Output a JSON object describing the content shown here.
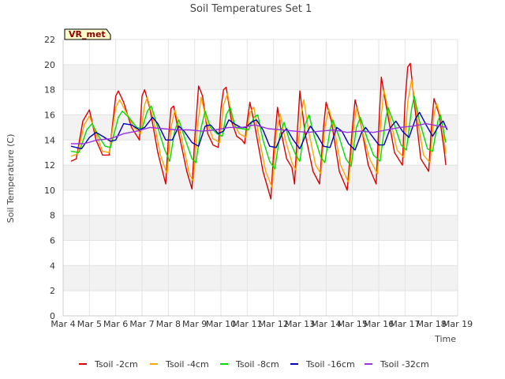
{
  "chart_data": {
    "type": "line",
    "title": "Soil Temperatures Set 1",
    "xlabel": "Time",
    "ylabel": "Soil Temperature (C)",
    "station_label": "VR_met",
    "x_tick_labels": [
      "Mar 4",
      "Mar 5",
      "Mar 6",
      "Mar 7",
      "Mar 8",
      "Mar 9",
      "Mar 10",
      "Mar 11",
      "Mar 12",
      "Mar 13",
      "Mar 14",
      "Mar 15",
      "Mar 16",
      "Mar 17",
      "Mar 18",
      "Mar 19"
    ],
    "xlim": [
      4,
      19
    ],
    "ylim": [
      0,
      22
    ],
    "y_ticks": [
      0,
      2,
      4,
      6,
      8,
      10,
      12,
      14,
      16,
      18,
      20,
      22
    ],
    "grid": true,
    "legend_position": "bottom",
    "colors": {
      "Tsoil -2cm": "#dd0000",
      "Tsoil -4cm": "#ffa500",
      "Tsoil -8cm": "#00dd00",
      "Tsoil -16cm": "#0000bb",
      "Tsoil -32cm": "#9933dd"
    },
    "series": [
      {
        "name": "Tsoil -2cm",
        "points": [
          [
            4.3,
            12.3
          ],
          [
            4.5,
            12.5
          ],
          [
            4.75,
            15.5
          ],
          [
            5.0,
            16.4
          ],
          [
            5.25,
            14.0
          ],
          [
            5.5,
            12.8
          ],
          [
            5.75,
            12.8
          ],
          [
            6.0,
            17.5
          ],
          [
            6.1,
            17.9
          ],
          [
            6.3,
            17.0
          ],
          [
            6.6,
            15.0
          ],
          [
            6.9,
            14.0
          ],
          [
            7.0,
            17.5
          ],
          [
            7.1,
            18.0
          ],
          [
            7.3,
            16.5
          ],
          [
            7.6,
            13.0
          ],
          [
            7.9,
            10.5
          ],
          [
            8.0,
            14.0
          ],
          [
            8.1,
            16.5
          ],
          [
            8.2,
            16.7
          ],
          [
            8.4,
            14.5
          ],
          [
            8.7,
            11.5
          ],
          [
            8.9,
            10.1
          ],
          [
            9.0,
            14.0
          ],
          [
            9.15,
            18.3
          ],
          [
            9.3,
            17.5
          ],
          [
            9.5,
            14.5
          ],
          [
            9.7,
            13.6
          ],
          [
            9.9,
            13.4
          ],
          [
            10.0,
            16.5
          ],
          [
            10.1,
            18.0
          ],
          [
            10.2,
            18.2
          ],
          [
            10.4,
            15.5
          ],
          [
            10.6,
            14.3
          ],
          [
            10.8,
            14.0
          ],
          [
            10.9,
            13.7
          ],
          [
            11.0,
            15.5
          ],
          [
            11.1,
            17.0
          ],
          [
            11.3,
            15.0
          ],
          [
            11.6,
            11.5
          ],
          [
            11.9,
            9.3
          ],
          [
            12.0,
            13.0
          ],
          [
            12.15,
            16.6
          ],
          [
            12.3,
            14.5
          ],
          [
            12.5,
            12.5
          ],
          [
            12.7,
            11.8
          ],
          [
            12.8,
            10.5
          ],
          [
            12.9,
            14.5
          ],
          [
            13.0,
            17.9
          ],
          [
            13.2,
            14.5
          ],
          [
            13.5,
            11.5
          ],
          [
            13.75,
            10.5
          ],
          [
            13.9,
            15.0
          ],
          [
            14.0,
            17.0
          ],
          [
            14.2,
            15.5
          ],
          [
            14.5,
            11.5
          ],
          [
            14.8,
            10.0
          ],
          [
            15.0,
            15.0
          ],
          [
            15.1,
            17.2
          ],
          [
            15.3,
            15.5
          ],
          [
            15.6,
            12.0
          ],
          [
            15.9,
            10.5
          ],
          [
            16.0,
            15.0
          ],
          [
            16.1,
            19.0
          ],
          [
            16.3,
            16.5
          ],
          [
            16.6,
            13.0
          ],
          [
            16.9,
            12.0
          ],
          [
            17.0,
            17.0
          ],
          [
            17.1,
            19.8
          ],
          [
            17.2,
            20.1
          ],
          [
            17.35,
            17.0
          ],
          [
            17.6,
            12.5
          ],
          [
            17.9,
            11.5
          ],
          [
            18.0,
            15.0
          ],
          [
            18.1,
            17.3
          ],
          [
            18.3,
            16.0
          ],
          [
            18.5,
            13.0
          ],
          [
            18.55,
            12.0
          ]
        ]
      },
      {
        "name": "Tsoil -4cm",
        "points": [
          [
            4.3,
            12.7
          ],
          [
            4.55,
            12.9
          ],
          [
            4.8,
            15.2
          ],
          [
            5.0,
            15.9
          ],
          [
            5.25,
            14.5
          ],
          [
            5.5,
            13.1
          ],
          [
            5.75,
            13.0
          ],
          [
            6.0,
            16.6
          ],
          [
            6.15,
            17.2
          ],
          [
            6.4,
            16.2
          ],
          [
            6.7,
            15.0
          ],
          [
            6.95,
            14.5
          ],
          [
            7.1,
            16.8
          ],
          [
            7.2,
            17.4
          ],
          [
            7.45,
            15.5
          ],
          [
            7.7,
            12.8
          ],
          [
            7.95,
            11.3
          ],
          [
            8.1,
            15.0
          ],
          [
            8.25,
            16.4
          ],
          [
            8.5,
            14.2
          ],
          [
            8.8,
            11.3
          ],
          [
            8.95,
            10.7
          ],
          [
            9.1,
            15.0
          ],
          [
            9.25,
            17.4
          ],
          [
            9.45,
            15.5
          ],
          [
            9.7,
            14.1
          ],
          [
            9.95,
            13.8
          ],
          [
            10.1,
            16.8
          ],
          [
            10.25,
            17.7
          ],
          [
            10.45,
            15.5
          ],
          [
            10.7,
            14.5
          ],
          [
            10.95,
            14.2
          ],
          [
            11.1,
            16.2
          ],
          [
            11.25,
            16.6
          ],
          [
            11.45,
            14.2
          ],
          [
            11.7,
            11.5
          ],
          [
            11.95,
            10.2
          ],
          [
            12.1,
            14.5
          ],
          [
            12.25,
            16.1
          ],
          [
            12.45,
            14.0
          ],
          [
            12.7,
            12.2
          ],
          [
            12.85,
            11.6
          ],
          [
            13.05,
            16.0
          ],
          [
            13.15,
            17.2
          ],
          [
            13.35,
            14.5
          ],
          [
            13.6,
            12.0
          ],
          [
            13.8,
            11.3
          ],
          [
            13.95,
            15.0
          ],
          [
            14.1,
            16.5
          ],
          [
            14.3,
            15.0
          ],
          [
            14.55,
            12.0
          ],
          [
            14.85,
            10.6
          ],
          [
            15.05,
            15.0
          ],
          [
            15.15,
            16.6
          ],
          [
            15.4,
            14.5
          ],
          [
            15.65,
            12.5
          ],
          [
            15.95,
            11.3
          ],
          [
            16.1,
            16.0
          ],
          [
            16.2,
            18.0
          ],
          [
            16.4,
            16.0
          ],
          [
            16.7,
            13.2
          ],
          [
            16.95,
            12.6
          ],
          [
            17.1,
            17.0
          ],
          [
            17.25,
            18.8
          ],
          [
            17.45,
            16.0
          ],
          [
            17.7,
            12.8
          ],
          [
            17.95,
            12.2
          ],
          [
            18.1,
            16.0
          ],
          [
            18.2,
            16.9
          ],
          [
            18.4,
            15.5
          ],
          [
            18.55,
            12.9
          ]
        ]
      },
      {
        "name": "Tsoil -8cm",
        "points": [
          [
            4.3,
            13.1
          ],
          [
            4.6,
            13.0
          ],
          [
            4.9,
            14.8
          ],
          [
            5.1,
            15.3
          ],
          [
            5.35,
            14.3
          ],
          [
            5.6,
            13.5
          ],
          [
            5.8,
            13.4
          ],
          [
            6.1,
            15.8
          ],
          [
            6.25,
            16.3
          ],
          [
            6.5,
            15.8
          ],
          [
            6.8,
            15.0
          ],
          [
            7.0,
            14.9
          ],
          [
            7.2,
            16.3
          ],
          [
            7.35,
            16.7
          ],
          [
            7.6,
            15.0
          ],
          [
            7.85,
            13.3
          ],
          [
            8.05,
            12.3
          ],
          [
            8.25,
            14.8
          ],
          [
            8.4,
            15.6
          ],
          [
            8.65,
            14.0
          ],
          [
            8.9,
            12.5
          ],
          [
            9.05,
            12.2
          ],
          [
            9.25,
            15.0
          ],
          [
            9.4,
            16.3
          ],
          [
            9.6,
            15.0
          ],
          [
            9.85,
            14.5
          ],
          [
            10.05,
            14.3
          ],
          [
            10.2,
            16.0
          ],
          [
            10.35,
            16.6
          ],
          [
            10.55,
            15.0
          ],
          [
            10.8,
            14.9
          ],
          [
            11.05,
            14.8
          ],
          [
            11.25,
            15.8
          ],
          [
            11.4,
            16.0
          ],
          [
            11.6,
            14.0
          ],
          [
            11.85,
            12.3
          ],
          [
            12.05,
            11.7
          ],
          [
            12.25,
            14.5
          ],
          [
            12.4,
            15.4
          ],
          [
            12.6,
            14.0
          ],
          [
            12.85,
            12.8
          ],
          [
            13.0,
            12.3
          ],
          [
            13.2,
            15.2
          ],
          [
            13.35,
            16.0
          ],
          [
            13.55,
            14.3
          ],
          [
            13.8,
            12.6
          ],
          [
            13.95,
            12.2
          ],
          [
            14.15,
            14.8
          ],
          [
            14.25,
            15.6
          ],
          [
            14.5,
            14.2
          ],
          [
            14.75,
            12.5
          ],
          [
            14.95,
            11.9
          ],
          [
            15.15,
            15.0
          ],
          [
            15.3,
            15.8
          ],
          [
            15.55,
            14.2
          ],
          [
            15.8,
            12.8
          ],
          [
            16.05,
            12.3
          ],
          [
            16.25,
            15.5
          ],
          [
            16.35,
            16.6
          ],
          [
            16.55,
            15.5
          ],
          [
            16.85,
            13.6
          ],
          [
            17.05,
            13.2
          ],
          [
            17.25,
            16.5
          ],
          [
            17.35,
            17.5
          ],
          [
            17.55,
            15.5
          ],
          [
            17.85,
            13.3
          ],
          [
            18.05,
            13.1
          ],
          [
            18.25,
            15.5
          ],
          [
            18.35,
            16.0
          ],
          [
            18.55,
            13.8
          ]
        ]
      },
      {
        "name": "Tsoil -16cm",
        "points": [
          [
            4.3,
            13.5
          ],
          [
            4.7,
            13.3
          ],
          [
            5.0,
            14.2
          ],
          [
            5.25,
            14.6
          ],
          [
            5.5,
            14.3
          ],
          [
            5.8,
            13.9
          ],
          [
            6.0,
            14.0
          ],
          [
            6.3,
            15.3
          ],
          [
            6.6,
            15.2
          ],
          [
            6.9,
            14.8
          ],
          [
            7.1,
            15.0
          ],
          [
            7.4,
            15.8
          ],
          [
            7.6,
            15.3
          ],
          [
            7.9,
            14.0
          ],
          [
            8.15,
            14.0
          ],
          [
            8.4,
            15.1
          ],
          [
            8.6,
            14.7
          ],
          [
            8.9,
            13.8
          ],
          [
            9.15,
            13.5
          ],
          [
            9.4,
            15.1
          ],
          [
            9.6,
            15.2
          ],
          [
            9.9,
            14.5
          ],
          [
            10.1,
            14.7
          ],
          [
            10.3,
            15.6
          ],
          [
            10.5,
            15.3
          ],
          [
            10.75,
            15.0
          ],
          [
            10.95,
            15.0
          ],
          [
            11.15,
            15.4
          ],
          [
            11.35,
            15.6
          ],
          [
            11.6,
            14.8
          ],
          [
            11.85,
            13.5
          ],
          [
            12.1,
            13.4
          ],
          [
            12.35,
            14.6
          ],
          [
            12.5,
            14.9
          ],
          [
            12.75,
            14.0
          ],
          [
            13.0,
            13.3
          ],
          [
            13.25,
            14.5
          ],
          [
            13.4,
            15.1
          ],
          [
            13.65,
            14.4
          ],
          [
            13.9,
            13.5
          ],
          [
            14.15,
            13.4
          ],
          [
            14.4,
            15.0
          ],
          [
            14.6,
            14.7
          ],
          [
            14.85,
            13.7
          ],
          [
            15.1,
            13.2
          ],
          [
            15.35,
            14.6
          ],
          [
            15.5,
            15.0
          ],
          [
            15.75,
            14.3
          ],
          [
            16.0,
            13.6
          ],
          [
            16.2,
            13.6
          ],
          [
            16.45,
            15.0
          ],
          [
            16.65,
            15.5
          ],
          [
            16.9,
            14.7
          ],
          [
            17.15,
            14.2
          ],
          [
            17.4,
            15.7
          ],
          [
            17.55,
            16.2
          ],
          [
            17.8,
            15.2
          ],
          [
            18.05,
            14.3
          ],
          [
            18.3,
            15.2
          ],
          [
            18.45,
            15.5
          ],
          [
            18.6,
            14.8
          ]
        ]
      },
      {
        "name": "Tsoil -32cm",
        "points": [
          [
            4.3,
            13.7
          ],
          [
            4.8,
            13.7
          ],
          [
            5.3,
            14.0
          ],
          [
            5.8,
            14.1
          ],
          [
            6.3,
            14.5
          ],
          [
            6.8,
            14.7
          ],
          [
            7.3,
            15.0
          ],
          [
            7.8,
            14.9
          ],
          [
            8.3,
            14.8
          ],
          [
            8.8,
            14.8
          ],
          [
            9.3,
            14.7
          ],
          [
            9.8,
            14.8
          ],
          [
            10.3,
            15.0
          ],
          [
            10.8,
            15.0
          ],
          [
            11.3,
            15.2
          ],
          [
            11.8,
            14.9
          ],
          [
            12.3,
            14.8
          ],
          [
            12.8,
            14.7
          ],
          [
            13.3,
            14.6
          ],
          [
            13.8,
            14.7
          ],
          [
            14.3,
            14.8
          ],
          [
            14.8,
            14.6
          ],
          [
            15.3,
            14.7
          ],
          [
            15.8,
            14.6
          ],
          [
            16.3,
            14.8
          ],
          [
            16.8,
            15.0
          ],
          [
            17.3,
            15.1
          ],
          [
            17.8,
            15.3
          ],
          [
            18.3,
            15.1
          ],
          [
            18.6,
            15.0
          ]
        ]
      }
    ]
  }
}
